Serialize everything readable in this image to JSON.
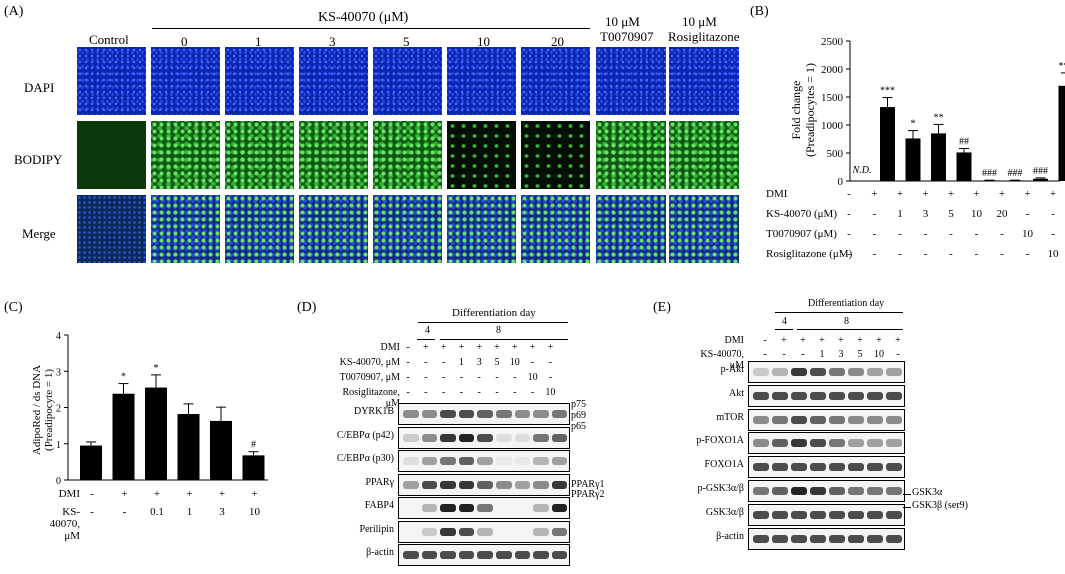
{
  "panelA": {
    "letter": "(A)",
    "group_header": "KS-40070 (μM)",
    "columns": [
      "Control",
      "0",
      "1",
      "3",
      "5",
      "10",
      "20"
    ],
    "col_t": {
      "l1": "10 μM",
      "l2": "T0070907"
    },
    "col_r": {
      "l1": "10 μM",
      "l2": "Rosiglitazone"
    },
    "rows": [
      "DAPI",
      "BODIPY",
      "Merge"
    ]
  },
  "panelB": {
    "letter": "(B)",
    "ylabel_1": "Fold change",
    "ylabel_2": "(Preadipocytes = 1)",
    "yticks": [
      "0",
      "500",
      "1000",
      "1500",
      "2000",
      "2500"
    ],
    "nd": "N.D.",
    "row_labels": [
      "DMI",
      "KS-40070 (μM)",
      "T0070907 (μM)",
      "Rosiglitazone (μM)"
    ],
    "rows": [
      [
        "-",
        "+",
        "+",
        "+",
        "+",
        "+",
        "+",
        "+",
        "+"
      ],
      [
        "-",
        "-",
        "1",
        "3",
        "5",
        "10",
        "20",
        "-",
        "-"
      ],
      [
        "-",
        "-",
        "-",
        "-",
        "-",
        "-",
        "-",
        "10",
        "-"
      ],
      [
        "-",
        "-",
        "-",
        "-",
        "-",
        "-",
        "-",
        "-",
        "10"
      ]
    ]
  },
  "panelC": {
    "letter": "(C)",
    "ylabel_1": "AdipoRed / ds DNA",
    "ylabel_2": "(Preadipocyte = 1)",
    "yticks": [
      "0",
      "1",
      "2",
      "3",
      "4"
    ],
    "row_labels": [
      "DMI",
      "KS-40070, μM"
    ],
    "rows": [
      [
        "-",
        "+",
        "+",
        "+",
        "+",
        "+"
      ],
      [
        "-",
        "-",
        "0.1",
        "1",
        "3",
        "10"
      ]
    ]
  },
  "panelD": {
    "letter": "(D)",
    "header": "Differentiation day",
    "days": [
      "4",
      "8"
    ],
    "row_labels": [
      "DMI",
      "KS-40070, μM",
      "T0070907, μM",
      "Rosiglitazone, μM"
    ],
    "rows": [
      [
        "-",
        "+",
        "+",
        "+",
        "+",
        "+",
        "+",
        "+",
        "+"
      ],
      [
        "-",
        "-",
        "-",
        "1",
        "3",
        "5",
        "10",
        "-",
        "-"
      ],
      [
        "-",
        "-",
        "-",
        "-",
        "-",
        "-",
        "-",
        "10",
        "-"
      ],
      [
        "-",
        "-",
        "-",
        "-",
        "-",
        "-",
        "-",
        "-",
        "10"
      ]
    ],
    "blots": [
      "DYRK1B",
      "C/EBPα (p42)",
      "C/EBPα (p30)",
      "PPARγ",
      "FABP4",
      "Perilipin",
      "β-actin"
    ],
    "right_labels": [
      "p75",
      "p69",
      "p65",
      "PPARγ1",
      "PPARγ2"
    ]
  },
  "panelE": {
    "letter": "(E)",
    "header": "Differentiation day",
    "days": [
      "4",
      "8"
    ],
    "row_labels": [
      "DMI",
      "KS-40070, μM"
    ],
    "rows": [
      [
        "-",
        "+",
        "+",
        "+",
        "+",
        "+",
        "+",
        "+"
      ],
      [
        "-",
        "-",
        "-",
        "1",
        "3",
        "5",
        "10",
        "-"
      ]
    ],
    "blots": [
      "p-Akt",
      "Akt",
      "mTOR",
      "p-FOXO1A",
      "FOXO1A",
      "p-GSK3α/β",
      "GSK3α/β",
      "β-actin"
    ],
    "right_labels": [
      "GSK3α",
      "GSK3β (ser9)"
    ]
  },
  "chart_data": [
    {
      "type": "bar",
      "panel": "B",
      "ylabel": "Fold change (Preadipocytes = 1)",
      "ylim": [
        0,
        2500
      ],
      "categories": [
        "1",
        "2",
        "3",
        "4",
        "5",
        "6",
        "7",
        "8",
        "9"
      ],
      "values": [
        0,
        1320,
        760,
        850,
        510,
        10,
        10,
        40,
        1700
      ],
      "errors": [
        0,
        170,
        140,
        160,
        70,
        5,
        5,
        15,
        230
      ],
      "annotations": [
        "N.D.",
        "***",
        "*",
        "**",
        "##",
        "###",
        "###",
        "###",
        "***"
      ]
    },
    {
      "type": "bar",
      "panel": "C",
      "ylabel": "AdipoRed / ds DNA (Preadipocyte = 1)",
      "ylim": [
        0,
        4
      ],
      "categories": [
        "1",
        "2",
        "3",
        "4",
        "5",
        "6"
      ],
      "values": [
        0.95,
        2.38,
        2.55,
        1.82,
        1.63,
        0.68
      ],
      "errors": [
        0.1,
        0.28,
        0.35,
        0.28,
        0.38,
        0.1
      ],
      "annotations": [
        "",
        "*",
        "*",
        "",
        "",
        "#"
      ]
    }
  ]
}
